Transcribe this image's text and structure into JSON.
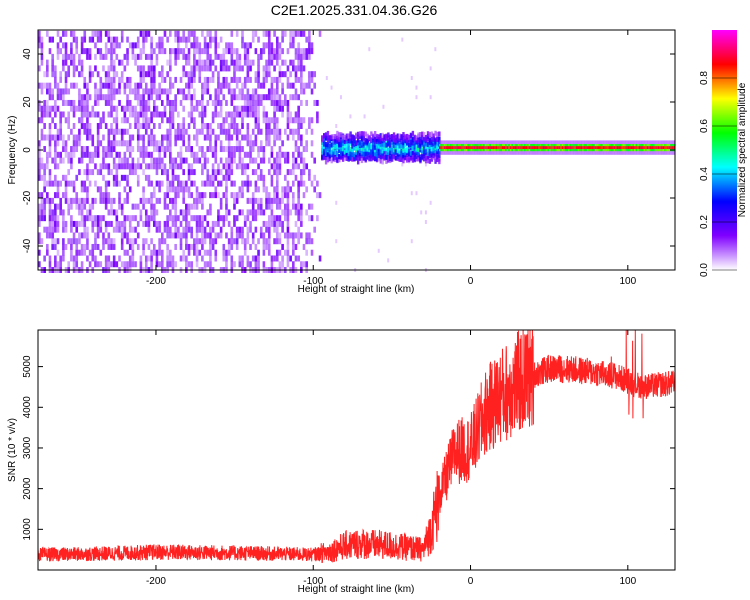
{
  "title": "C2E1.2025.331.04.36.G26",
  "chart_data": [
    {
      "type": "heatmap",
      "xlabel": "Height of straight line (km)",
      "ylabel": "Frequency (Hz)",
      "xlim": [
        -275,
        130
      ],
      "ylim": [
        -50,
        50
      ],
      "x_ticks": [
        -200,
        -100,
        0,
        100
      ],
      "y_ticks": [
        -40,
        -20,
        0,
        20,
        40
      ],
      "colorbar": {
        "label": "Normalized spectral amplitude",
        "range": [
          0,
          1
        ],
        "ticks": [
          0.0,
          0.2,
          0.4,
          0.6,
          0.8
        ],
        "colors": [
          "#ffffff",
          "#8000ff",
          "#0000ff",
          "#00ffff",
          "#00ff00",
          "#ffff00",
          "#ff0000",
          "#ff00ff"
        ]
      },
      "features": [
        {
          "name": "noise",
          "x_range": [
            -275,
            -95
          ],
          "frequency_range": [
            -50,
            50
          ],
          "amplitude": 0.1
        },
        {
          "name": "transition",
          "x_range": [
            -95,
            -20
          ],
          "frequency_center": 1,
          "frequency_halfwidth": 5,
          "amplitude": 0.35
        },
        {
          "name": "carrier",
          "x_range": [
            -20,
            130
          ],
          "frequency_center": 1,
          "frequency_halfwidth": 1.5,
          "amplitude": 0.9
        }
      ],
      "grid": false
    },
    {
      "type": "line",
      "xlabel": "Height of straight line (km)",
      "ylabel": "SNR (10 * v/v)",
      "xlim": [
        -275,
        130
      ],
      "ylim": [
        0,
        5900
      ],
      "x_ticks": [
        -200,
        -100,
        0,
        100
      ],
      "y_ticks": [
        1000,
        2000,
        3000,
        4000,
        5000
      ],
      "series_color": "#ff2020",
      "x": [
        -275,
        -250,
        -225,
        -200,
        -175,
        -150,
        -125,
        -100,
        -90,
        -80,
        -70,
        -60,
        -50,
        -40,
        -30,
        -25,
        -20,
        -10,
        0,
        10,
        20,
        30,
        40,
        50,
        60,
        70,
        80,
        90,
        100,
        110,
        120,
        130
      ],
      "values": [
        380,
        390,
        410,
        440,
        430,
        420,
        400,
        380,
        450,
        600,
        650,
        620,
        600,
        550,
        500,
        1000,
        1800,
        2900,
        3000,
        3900,
        4300,
        4600,
        4800,
        4950,
        4950,
        4900,
        4850,
        4800,
        4650,
        4500,
        4550,
        4600
      ],
      "grid": false
    }
  ]
}
